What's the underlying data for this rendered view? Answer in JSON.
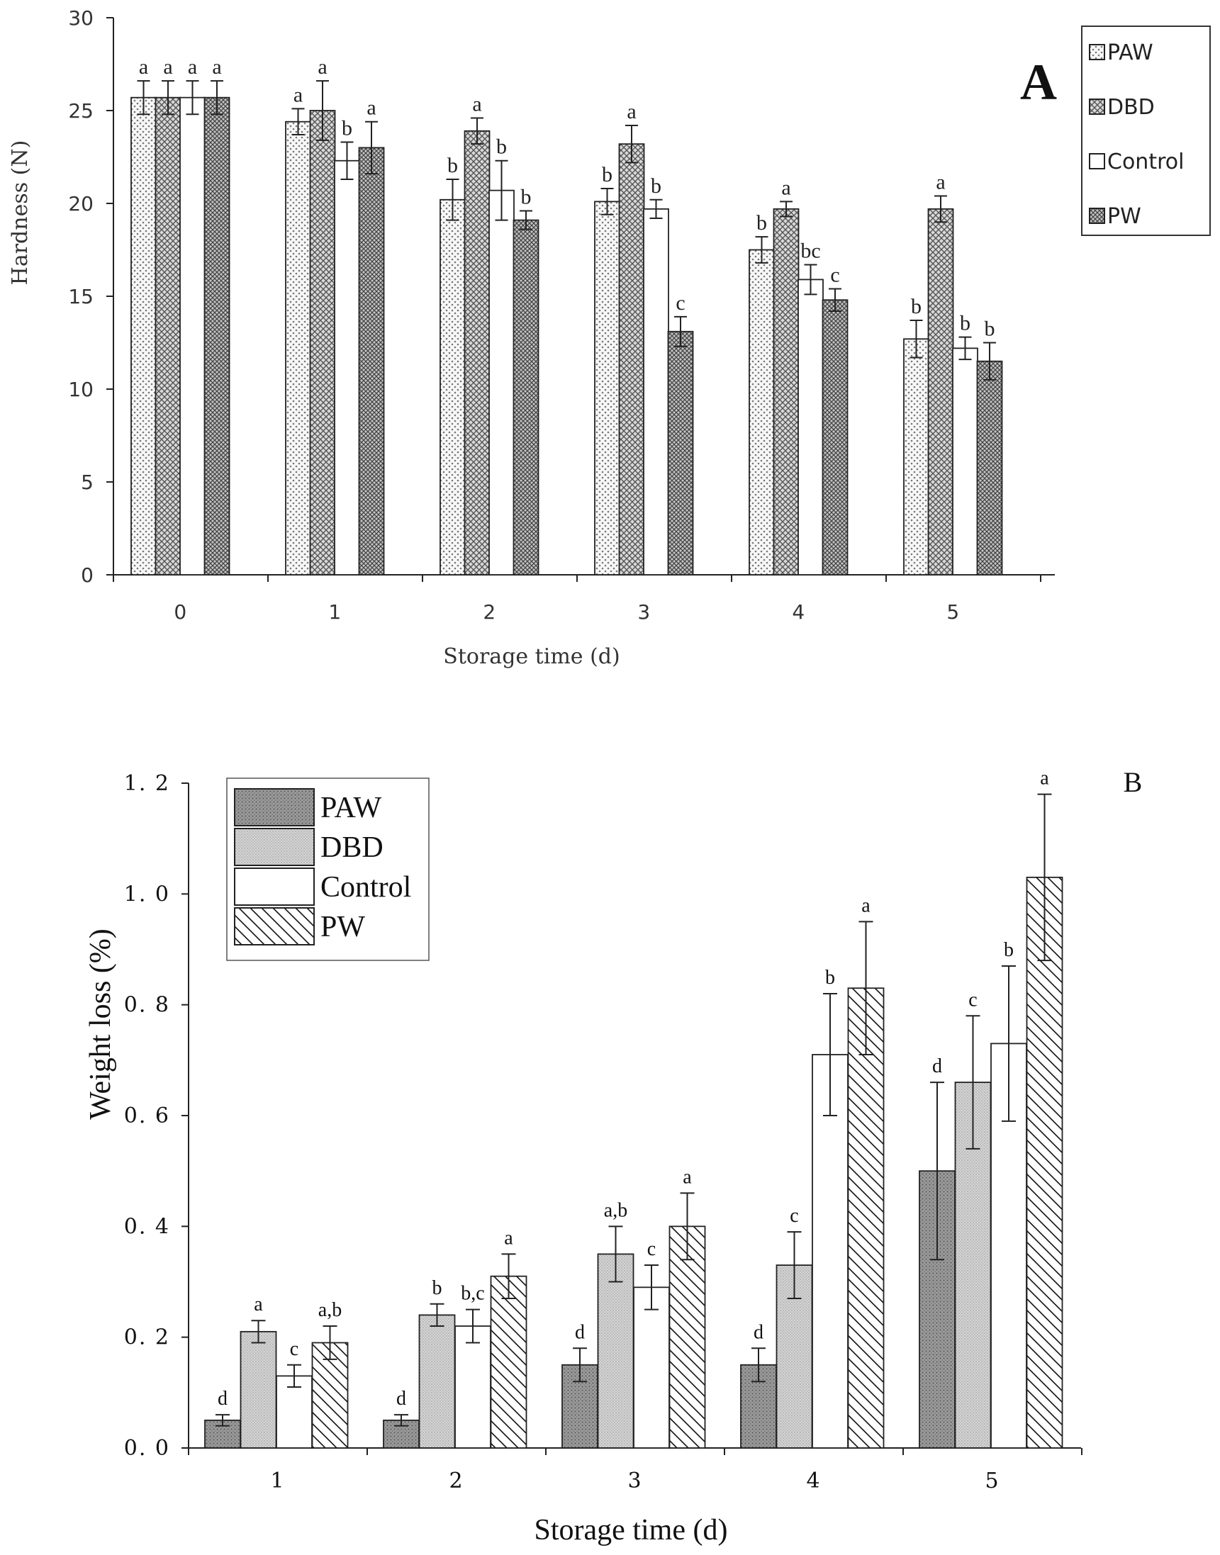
{
  "chart_data": [
    {
      "id": "A",
      "type": "bar",
      "panel_label": "A",
      "xlabel": "Storage time (d)",
      "ylabel": "Hardness (N)",
      "ylim": [
        0,
        30
      ],
      "yticks": [
        0,
        5,
        10,
        15,
        20,
        25,
        30
      ],
      "categories": [
        "0",
        "1",
        "2",
        "3",
        "4",
        "5"
      ],
      "legend_position": "top-right",
      "series": [
        {
          "name": "PAW",
          "pattern": "dots",
          "values": [
            25.7,
            24.4,
            20.2,
            20.1,
            17.5,
            12.7
          ],
          "errors": [
            0.9,
            0.7,
            1.1,
            0.7,
            0.7,
            1.0
          ],
          "letters": [
            "a",
            "a",
            "b",
            "b",
            "b",
            "b"
          ]
        },
        {
          "name": "DBD",
          "pattern": "crosshatch",
          "values": [
            25.7,
            25.0,
            23.9,
            23.2,
            19.7,
            19.7
          ],
          "errors": [
            0.9,
            1.6,
            0.7,
            1.0,
            0.4,
            0.7
          ],
          "letters": [
            "a",
            "a",
            "a",
            "a",
            "a",
            "a"
          ]
        },
        {
          "name": "Control",
          "pattern": "none",
          "values": [
            25.7,
            22.3,
            20.7,
            19.7,
            15.9,
            12.2
          ],
          "errors": [
            0.9,
            1.0,
            1.6,
            0.5,
            0.8,
            0.6
          ],
          "letters": [
            "a",
            "b",
            "b",
            "b",
            "bc",
            "b"
          ]
        },
        {
          "name": "PW",
          "pattern": "crosshatch-dense",
          "values": [
            25.7,
            23.0,
            19.1,
            13.1,
            14.8,
            11.5
          ],
          "errors": [
            0.9,
            1.4,
            0.5,
            0.8,
            0.6,
            1.0
          ],
          "letters": [
            "a",
            "a",
            "b",
            "c",
            "c",
            "b"
          ]
        }
      ]
    },
    {
      "id": "B",
      "type": "bar",
      "panel_label": "B",
      "xlabel": "Storage time (d)",
      "ylabel": "Weight loss (%)",
      "ylim": [
        0,
        1.2
      ],
      "yticks": [
        "0. 0",
        "0. 2",
        "0. 4",
        "0. 6",
        "0. 8",
        "1. 0",
        "1. 2"
      ],
      "categories": [
        "1",
        "2",
        "3",
        "4",
        "5"
      ],
      "legend_position": "top-left",
      "series": [
        {
          "name": "PAW",
          "pattern": "dark-dots",
          "values": [
            0.05,
            0.05,
            0.15,
            0.15,
            0.5
          ],
          "errors": [
            0.01,
            0.01,
            0.03,
            0.03,
            0.16
          ],
          "letters": [
            "d",
            "d",
            "d",
            "d",
            "d"
          ]
        },
        {
          "name": "DBD",
          "pattern": "light-dots",
          "values": [
            0.21,
            0.24,
            0.35,
            0.33,
            0.66
          ],
          "errors": [
            0.02,
            0.02,
            0.05,
            0.06,
            0.12
          ],
          "letters": [
            "a",
            "b",
            "a,b",
            "c",
            "c"
          ]
        },
        {
          "name": "Control",
          "pattern": "none",
          "values": [
            0.13,
            0.22,
            0.29,
            0.71,
            0.73
          ],
          "errors": [
            0.02,
            0.03,
            0.04,
            0.11,
            0.14
          ],
          "letters": [
            "c",
            "b,c",
            "c",
            "b",
            "b"
          ]
        },
        {
          "name": "PW",
          "pattern": "diagonal",
          "values": [
            0.19,
            0.31,
            0.4,
            0.83,
            1.03
          ],
          "errors": [
            0.03,
            0.04,
            0.06,
            0.12,
            0.15
          ],
          "letters": [
            "a,b",
            "a",
            "a",
            "a",
            "a"
          ]
        }
      ]
    }
  ]
}
